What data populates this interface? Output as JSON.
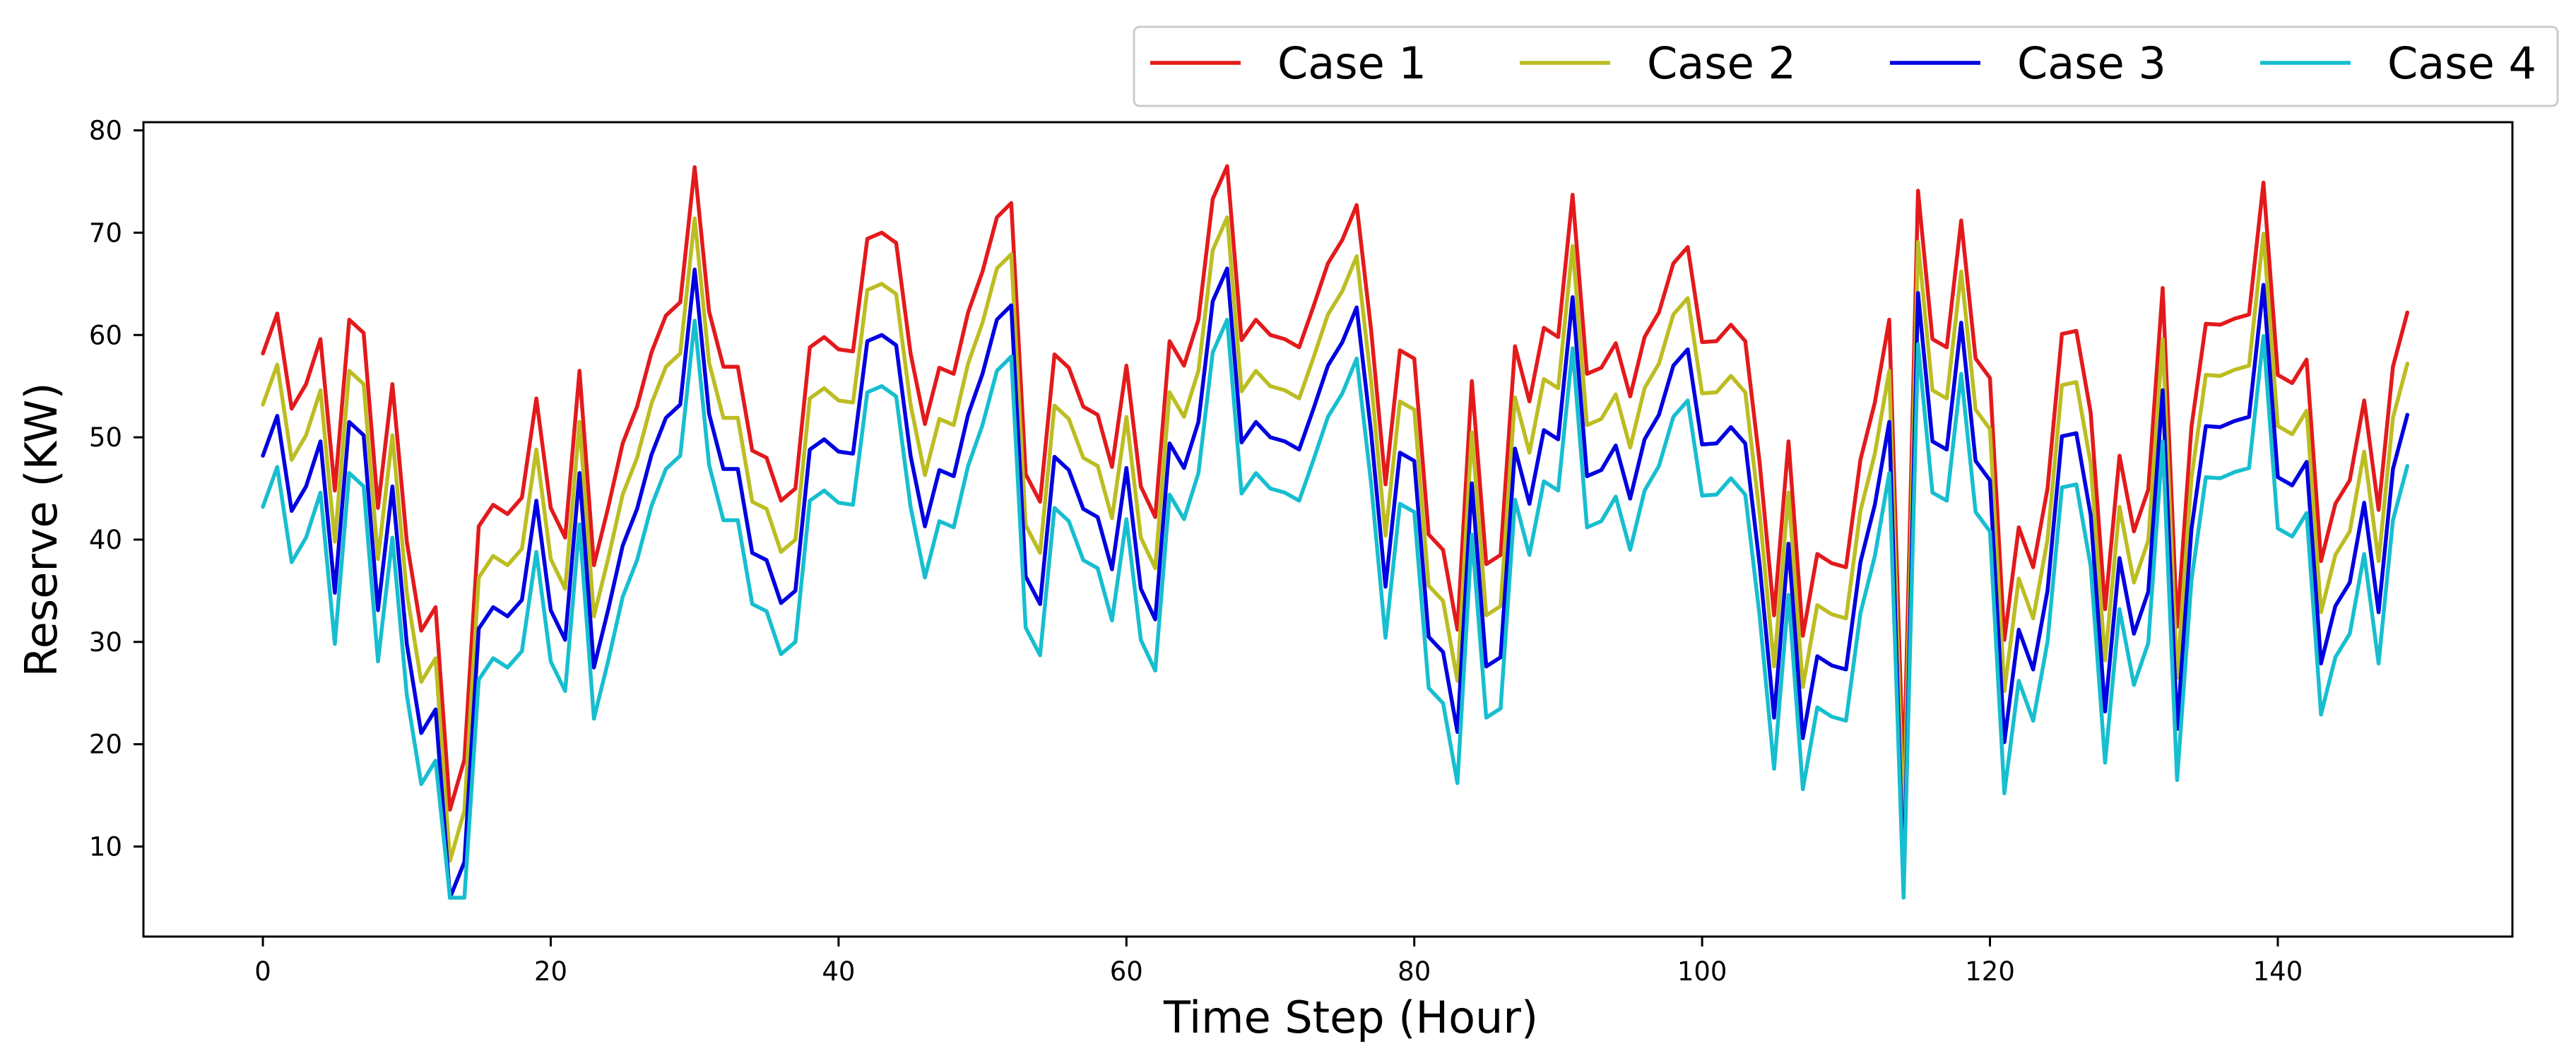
{
  "chart_data": {
    "type": "line",
    "title": "",
    "xlabel": "Time Step (Hour)",
    "ylabel": "Reserve (KW)",
    "xlim": [
      -8.3,
      156.3
    ],
    "ylim": [
      1.2,
      80.8
    ],
    "xticks": [
      0,
      20,
      40,
      60,
      80,
      100,
      120,
      140
    ],
    "yticks": [
      10,
      20,
      30,
      40,
      50,
      60,
      70,
      80
    ],
    "grid": false,
    "legend_position": "top-right, outside above plot",
    "series": [
      {
        "name": "Case 1",
        "color": "#e31a1c",
        "offset": 0,
        "values": [
          58.2,
          62.1,
          52.8,
          55.2,
          59.6,
          44.8,
          61.5,
          60.2,
          43.1,
          55.2,
          39.8,
          31.1,
          33.4,
          13.6,
          18.5,
          41.3,
          43.4,
          42.5,
          44.1,
          53.8,
          43.1,
          40.2,
          56.5,
          37.5,
          43.2,
          49.4,
          53.0,
          58.3,
          61.9,
          63.2,
          76.4,
          62.3,
          56.9,
          56.9,
          48.7,
          48.0,
          43.8,
          45.0,
          58.8,
          59.8,
          58.6,
          58.4,
          69.4,
          70.0,
          69.0,
          58.2,
          51.3,
          56.8,
          56.2,
          62.2,
          66.2,
          71.5,
          72.9,
          46.4,
          43.7,
          58.1,
          56.8,
          53.0,
          52.2,
          47.1,
          57.0,
          45.2,
          42.2,
          59.4,
          57.0,
          61.5,
          73.3,
          76.5,
          59.5,
          61.5,
          60.0,
          59.6,
          58.8,
          62.8,
          67.0,
          69.3,
          72.7,
          60.5,
          45.4,
          58.5,
          57.7,
          40.5,
          39.0,
          31.2,
          55.5,
          37.6,
          38.5,
          58.9,
          53.5,
          60.7,
          59.8,
          73.7,
          56.2,
          56.8,
          59.2,
          54.0,
          59.8,
          62.2,
          67.0,
          68.6,
          59.3,
          59.4,
          61.0,
          59.4,
          47.5,
          32.6,
          49.6,
          30.6,
          38.6,
          37.7,
          37.3,
          47.8,
          53.4,
          61.5,
          16.0,
          74.1,
          59.6,
          58.8,
          71.2,
          57.7,
          55.8,
          30.2,
          41.2,
          37.3,
          45.0,
          60.1,
          60.4,
          52.4,
          33.2,
          48.2,
          40.8,
          44.9,
          64.6,
          31.5,
          51.0,
          61.1,
          61.0,
          61.6,
          62.0,
          74.9,
          56.1,
          55.3,
          57.6,
          37.9,
          43.5,
          45.8,
          53.6,
          42.9,
          56.9,
          62.2
        ]
      },
      {
        "name": "Case 2",
        "color": "#bcbd22",
        "offset": -5,
        "values": []
      },
      {
        "name": "Case 3",
        "color": "#0000e0",
        "offset": -10,
        "values": []
      },
      {
        "name": "Case 4",
        "color": "#17becf",
        "offset": -15,
        "values": []
      }
    ]
  }
}
